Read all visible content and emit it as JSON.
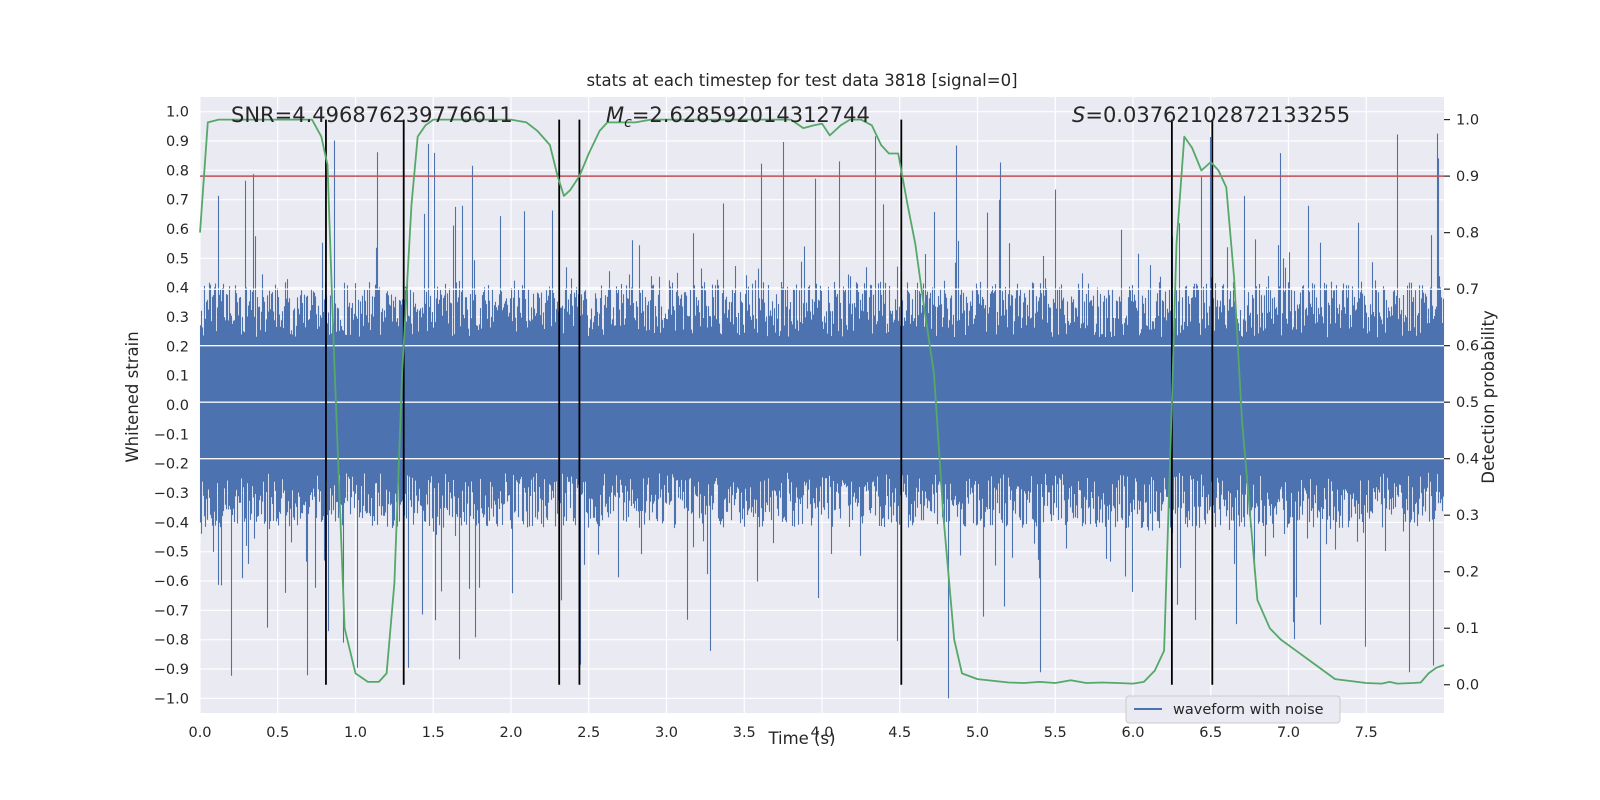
{
  "chart_data": {
    "type": "line",
    "title": "stats at each timestep for test data 3818 [signal=0]",
    "xlabel": "Time (s)",
    "ylabel": "Whitened strain",
    "ylabel_right": "Detection probability",
    "xlim": [
      0.0,
      8.0
    ],
    "ylim": [
      -1.05,
      1.05
    ],
    "ylim_right": [
      -0.05,
      1.04
    ],
    "x_ticks": [
      "0.0",
      "0.5",
      "1.0",
      "1.5",
      "2.0",
      "2.5",
      "3.0",
      "3.5",
      "4.0",
      "4.5",
      "5.0",
      "5.5",
      "6.0",
      "6.5",
      "7.0",
      "7.5"
    ],
    "y_ticks": [
      "1.0",
      "0.9",
      "0.8",
      "0.7",
      "0.6",
      "0.5",
      "0.4",
      "0.3",
      "0.2",
      "0.1",
      "0.0",
      "-0.1",
      "-0.2",
      "-0.3",
      "-0.4",
      "-0.5",
      "-0.6",
      "-0.7",
      "-0.8",
      "-0.9",
      "-1.0"
    ],
    "y_ticks_right": [
      "1.0",
      "0.9",
      "0.8",
      "0.7",
      "0.6",
      "0.5",
      "0.4",
      "0.3",
      "0.2",
      "0.1",
      "0.0"
    ],
    "annotations": {
      "snr": "SNR=4.496876239776611",
      "chirp_mass": "M",
      "chirp_mass_sub": "c",
      "chirp_mass_value": "=2.628592014312744",
      "s_symbol": "S",
      "s_value": "=0.037621028721332​55"
    },
    "threshold": 0.9,
    "event_lines": [
      0.81,
      1.31,
      2.31,
      2.44,
      4.51,
      6.25,
      6.51
    ],
    "noise": {
      "name": "waveform with noise",
      "n_samples": 8192,
      "core_amplitude": 0.42,
      "peak_amplitude": 0.95,
      "seed": 3818
    },
    "probability": {
      "name": "Detection probability",
      "x": [
        0.0,
        0.05,
        0.12,
        0.2,
        0.4,
        0.6,
        0.72,
        0.78,
        0.82,
        0.86,
        0.93,
        1.0,
        1.08,
        1.15,
        1.2,
        1.25,
        1.3,
        1.36,
        1.4,
        1.45,
        1.5,
        1.6,
        1.8,
        2.0,
        2.1,
        2.17,
        2.25,
        2.3,
        2.34,
        2.38,
        2.44,
        2.5,
        2.57,
        2.62,
        2.7,
        2.8,
        2.9,
        3.0,
        3.2,
        3.4,
        3.6,
        3.8,
        3.88,
        3.95,
        4.0,
        4.05,
        4.12,
        4.18,
        4.25,
        4.32,
        4.38,
        4.43,
        4.49,
        4.55,
        4.6,
        4.65,
        4.72,
        4.78,
        4.85,
        4.9,
        5.0,
        5.2,
        5.3,
        5.4,
        5.5,
        5.6,
        5.7,
        5.8,
        5.9,
        6.0,
        6.07,
        6.14,
        6.2,
        6.25,
        6.28,
        6.33,
        6.38,
        6.44,
        6.5,
        6.55,
        6.6,
        6.65,
        6.7,
        6.8,
        6.88,
        6.95,
        7.05,
        7.15,
        7.3,
        7.5,
        7.6,
        7.65,
        7.7,
        7.8,
        7.85,
        7.9,
        7.95,
        8.0
      ],
      "y": [
        0.8,
        0.995,
        1.0,
        1.0,
        1.0,
        1.0,
        1.0,
        0.97,
        0.92,
        0.6,
        0.1,
        0.02,
        0.005,
        0.005,
        0.02,
        0.18,
        0.55,
        0.85,
        0.97,
        0.99,
        1.0,
        1.0,
        1.0,
        1.0,
        0.995,
        0.98,
        0.955,
        0.9,
        0.865,
        0.875,
        0.9,
        0.94,
        0.98,
        0.995,
        0.995,
        0.995,
        1.0,
        1.0,
        1.0,
        1.0,
        1.0,
        1.0,
        0.985,
        0.99,
        0.993,
        0.972,
        0.99,
        1.0,
        1.0,
        0.99,
        0.955,
        0.94,
        0.94,
        0.85,
        0.78,
        0.68,
        0.55,
        0.3,
        0.08,
        0.02,
        0.01,
        0.004,
        0.003,
        0.005,
        0.003,
        0.008,
        0.003,
        0.004,
        0.003,
        0.002,
        0.005,
        0.025,
        0.06,
        0.5,
        0.78,
        0.97,
        0.95,
        0.91,
        0.925,
        0.91,
        0.88,
        0.72,
        0.47,
        0.15,
        0.1,
        0.08,
        0.06,
        0.04,
        0.01,
        0.003,
        0.002,
        0.005,
        0.002,
        0.003,
        0.004,
        0.02,
        0.03,
        0.035
      ]
    },
    "legend": [
      "waveform with noise"
    ],
    "legend_loc": "lower-right",
    "grid": true,
    "colors": {
      "noise": "#4c72b0",
      "probability": "#55a868",
      "threshold": "#c44e52",
      "event": "#000000",
      "background": "#eaeaf2",
      "grid": "#ffffff"
    }
  }
}
